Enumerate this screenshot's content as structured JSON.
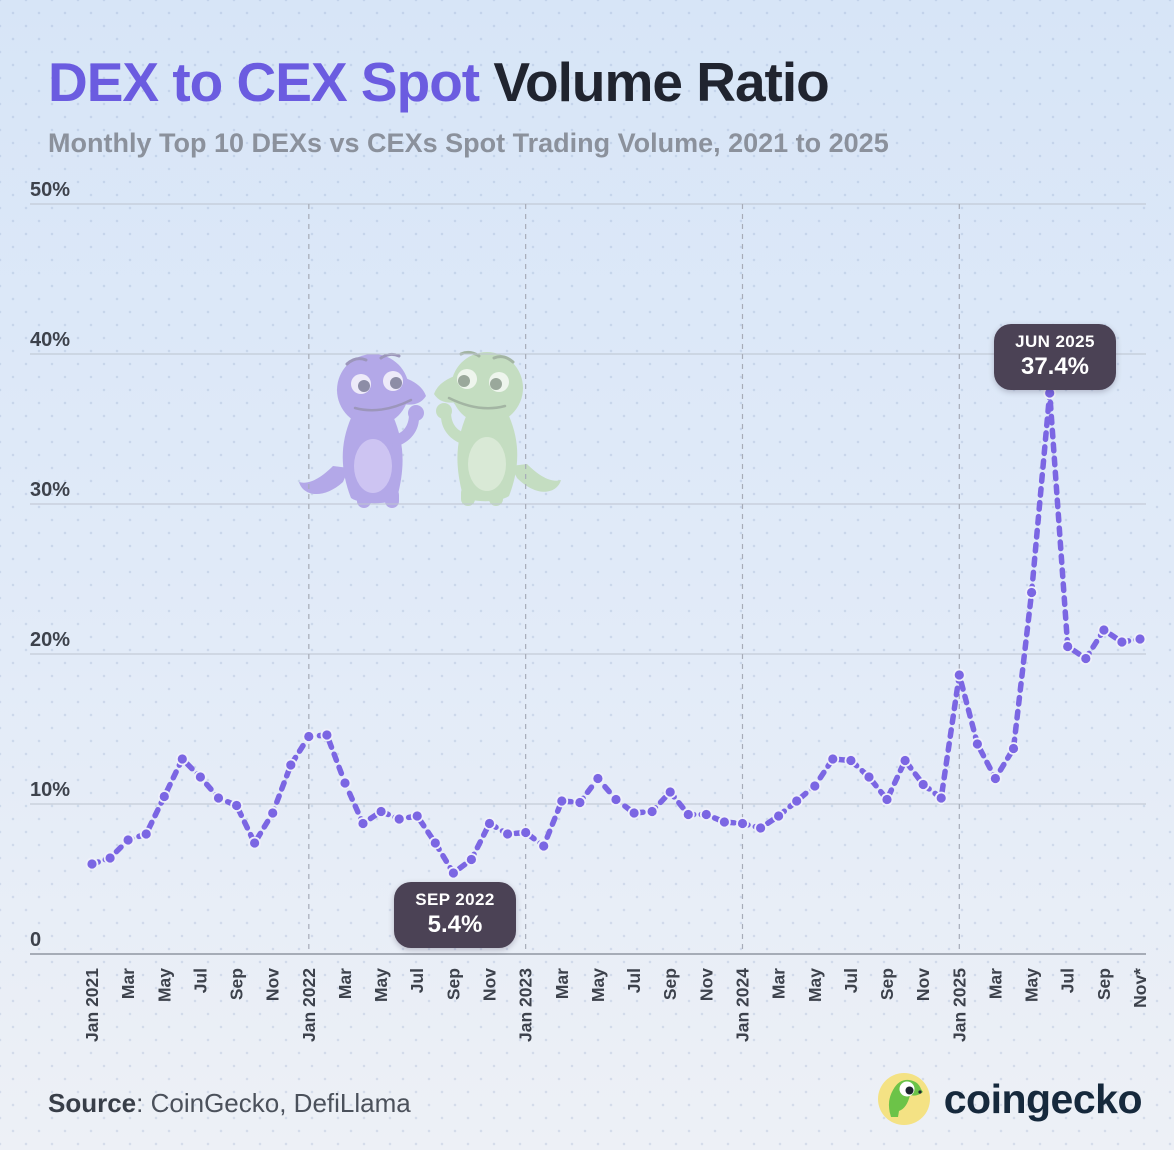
{
  "header": {
    "title_accent": "DEX to CEX Spot",
    "title_rest": " Volume Ratio",
    "subtitle": "Monthly Top 10 DEXs vs CEXs Spot Trading Volume, 2021 to 2025"
  },
  "chart_data": {
    "type": "line",
    "title": "DEX to CEX Spot Volume Ratio",
    "series_name": "DEX to CEX spot volume ratio (%)",
    "frequency": "monthly",
    "first_month": "Jan 2021",
    "last_month": "Nov 2025",
    "values": [
      6.0,
      6.4,
      7.6,
      8.0,
      10.5,
      13.0,
      11.8,
      10.4,
      9.9,
      7.4,
      9.4,
      12.6,
      14.5,
      14.6,
      11.4,
      8.7,
      9.5,
      9.0,
      9.2,
      7.4,
      5.4,
      6.3,
      8.7,
      8.0,
      8.1,
      7.2,
      10.2,
      10.1,
      11.7,
      10.3,
      9.4,
      9.5,
      10.8,
      9.3,
      9.3,
      8.8,
      8.7,
      8.4,
      9.2,
      10.2,
      11.2,
      13.0,
      12.9,
      11.8,
      10.3,
      12.9,
      11.3,
      10.4,
      18.6,
      14.0,
      11.7,
      13.7,
      24.1,
      37.4,
      20.5,
      19.7,
      21.6,
      20.8,
      21.0
    ],
    "x_tick_labels": [
      "Jan 2021",
      "Mar",
      "May",
      "Jul",
      "Sep",
      "Nov",
      "Jan 2022",
      "Mar",
      "May",
      "Jul",
      "Sep",
      "Nov",
      "Jan 2023",
      "Mar",
      "May",
      "Jul",
      "Sep",
      "Nov",
      "Jan 2024",
      "Mar",
      "May",
      "Jul",
      "Sep",
      "Nov",
      "Jan 2025",
      "Mar",
      "May",
      "Jul",
      "Sep",
      "Nov*"
    ],
    "x_tick_every": 2,
    "y_tick_labels": [
      "50%",
      "40%",
      "30%",
      "20%",
      "10%",
      "0"
    ],
    "y_tick_values": [
      50,
      40,
      30,
      20,
      10,
      0
    ],
    "ylim": [
      0,
      50
    ],
    "grid": true,
    "legend": "none",
    "year_divider_months": [
      12,
      24,
      36,
      48
    ],
    "annotations": [
      {
        "label": "SEP 2022",
        "value_label": "5.4%",
        "month_index": 20
      },
      {
        "label": "JUN 2025",
        "value_label": "37.4%",
        "month_index": 53
      }
    ],
    "colors": {
      "line": "#7b66e3",
      "marker": "#7b66e3",
      "marker_outline": "#eef0fa",
      "grid": "#bcc3cf",
      "axis": "#9096a2",
      "year_divider": "#a7acb8",
      "tick_text": "#3d424c",
      "annotation_bg": "#4b4255",
      "title_accent": "#6b5ce0",
      "title_dark": "#20242f"
    }
  },
  "footer": {
    "source_label": "Source",
    "source_rest": ": CoinGecko, DefiLlama",
    "logo_text": "coingecko"
  }
}
